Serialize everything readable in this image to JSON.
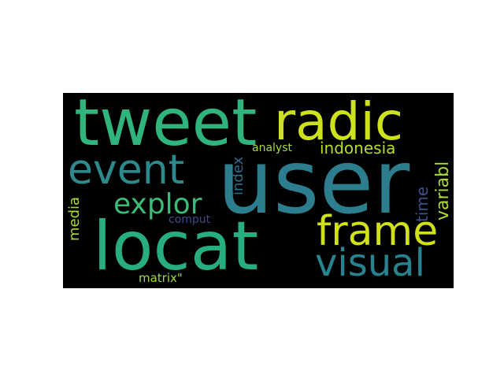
{
  "words": {
    "user": {
      "text": "user",
      "color": "#2c7d8e"
    },
    "tweet": {
      "text": "tweet",
      "color": "#2fb47c"
    },
    "radic": {
      "text": "radic",
      "color": "#cde11d"
    },
    "locat": {
      "text": "locat",
      "color": "#27ad81"
    },
    "event": {
      "text": "event",
      "color": "#2c8a8c"
    },
    "frame": {
      "text": "frame",
      "color": "#d0e11c"
    },
    "visual": {
      "text": "visual",
      "color": "#26838f"
    },
    "explor": {
      "text": "explor",
      "color": "#3bbb75"
    },
    "indonesia": {
      "text": "indonesia",
      "color": "#b5de2b"
    },
    "index": {
      "text": "index",
      "color": "#2e6f8e"
    },
    "analyst": {
      "text": "analyst",
      "color": "#a2da37"
    },
    "variabl": {
      "text": "variabl",
      "color": "#addc30"
    },
    "time": {
      "text": "time",
      "color": "#3b528b"
    },
    "media": {
      "text": "media",
      "color": "#a8db34"
    },
    "comput": {
      "text": "comput",
      "color": "#3e4a89"
    },
    "matrix": {
      "text": "matrix\"",
      "color": "#a0da39"
    }
  }
}
